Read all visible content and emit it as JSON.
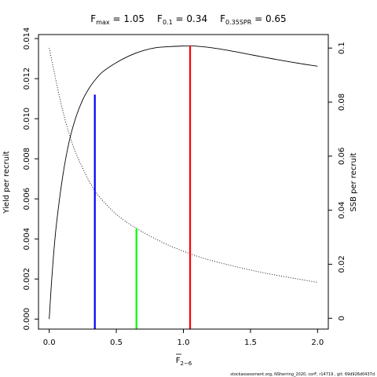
{
  "chart_data": {
    "type": "line",
    "title_parts": [
      {
        "main": "F",
        "sub": "max",
        "rest": " = 1.05"
      },
      {
        "main": "F",
        "sub": "0.1",
        "rest": " = 0.34"
      },
      {
        "main": "F",
        "sub": "0.35SPR",
        "rest": " = 0.65"
      }
    ],
    "xlabel": {
      "main": "F",
      "sub": "2−6"
    },
    "ylabel_left": "Yield per recruit",
    "ylabel_right": "SSB per recruit",
    "xlim": [
      -0.08,
      2.08
    ],
    "ylim_left": [
      -0.0005,
      0.0142
    ],
    "ylim_right": [
      -0.004,
      0.105
    ],
    "x_ticks": [
      0,
      0.5,
      1,
      1.5,
      2
    ],
    "x_tick_labels": [
      "0.0",
      "0.5",
      "1.0",
      "1.5",
      "2.0"
    ],
    "y_left_ticks": [
      0,
      0.002,
      0.004,
      0.006,
      0.008,
      0.01,
      0.012,
      0.014
    ],
    "y_left_tick_labels": [
      "0.000",
      "0.002",
      "0.004",
      "0.006",
      "0.008",
      "0.010",
      "0.012",
      "0.014"
    ],
    "y_right_ticks": [
      0,
      0.02,
      0.04,
      0.06,
      0.08,
      0.1
    ],
    "y_right_tick_labels": [
      "0",
      "0.02",
      "0.04",
      "0.06",
      "0.08",
      "0.1"
    ],
    "series": [
      {
        "axis": "left",
        "style": "solid",
        "color": "#000000",
        "x": [
          0,
          0.02,
          0.05,
          0.1,
          0.15,
          0.2,
          0.25,
          0.3,
          0.35,
          0.4,
          0.5,
          0.6,
          0.7,
          0.8,
          0.9,
          1.0,
          1.05,
          1.1,
          1.2,
          1.3,
          1.4,
          1.5,
          1.6,
          1.7,
          1.8,
          1.9,
          2.0
        ],
        "y": [
          0,
          0.0021,
          0.0045,
          0.0071,
          0.0089,
          0.0101,
          0.01095,
          0.01155,
          0.012,
          0.01235,
          0.0128,
          0.01315,
          0.0134,
          0.01355,
          0.0136,
          0.01363,
          0.01364,
          0.01362,
          0.01355,
          0.01345,
          0.01333,
          0.0132,
          0.01307,
          0.01295,
          0.01283,
          0.01272,
          0.01262
        ]
      },
      {
        "axis": "right",
        "style": "dotted",
        "color": "#000000",
        "x": [
          0,
          0.05,
          0.1,
          0.15,
          0.2,
          0.25,
          0.3,
          0.35,
          0.4,
          0.5,
          0.6,
          0.65,
          0.7,
          0.8,
          0.9,
          1.0,
          1.05,
          1.1,
          1.2,
          1.4,
          1.6,
          1.8,
          2.0
        ],
        "y": [
          0.1,
          0.088,
          0.077,
          0.068,
          0.061,
          0.0555,
          0.0505,
          0.0465,
          0.0435,
          0.0385,
          0.0348,
          0.0333,
          0.0318,
          0.0292,
          0.0268,
          0.0248,
          0.0239,
          0.023,
          0.0215,
          0.019,
          0.0168,
          0.015,
          0.0133
        ]
      }
    ],
    "reference_lines": [
      {
        "x": 0.34,
        "axis": "left",
        "y": 0.0112,
        "color": "#0000ff"
      },
      {
        "x": 0.65,
        "axis": "right",
        "y": 0.0333,
        "color": "#00ff00"
      },
      {
        "x": 1.05,
        "axis": "left",
        "y": 0.01364,
        "color": "#ff0000"
      }
    ],
    "footer": "stockassessment.org, NSherring_2020, corF, r14719 , git: 69d926d0437d"
  }
}
